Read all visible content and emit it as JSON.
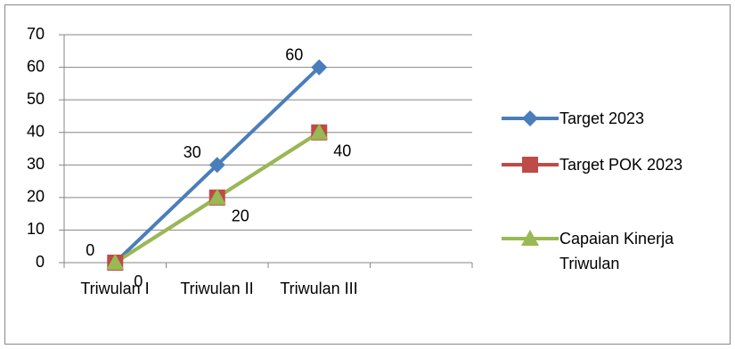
{
  "chart_data": {
    "type": "line",
    "categories": [
      "Triwulan I",
      "Triwulan II",
      "Triwulan III",
      null
    ],
    "series": [
      {
        "name": "Target 2023",
        "color": "#4a7ebb",
        "marker": "diamond",
        "data_labels": true,
        "values": [
          0,
          30,
          60,
          null
        ]
      },
      {
        "name": "Target POK 2023",
        "color": "#be4b48",
        "marker": "square",
        "data_labels": false,
        "values": [
          0,
          20,
          40,
          null
        ]
      },
      {
        "name": "Capaian Kinerja Triwulan",
        "color": "#98b954",
        "marker": "triangle",
        "data_labels": true,
        "values": [
          0,
          20,
          40,
          null
        ]
      }
    ],
    "ylim": [
      0,
      70
    ],
    "yticks": [
      0,
      10,
      20,
      30,
      40,
      50,
      60,
      70
    ],
    "grid": true,
    "legend": "right"
  }
}
